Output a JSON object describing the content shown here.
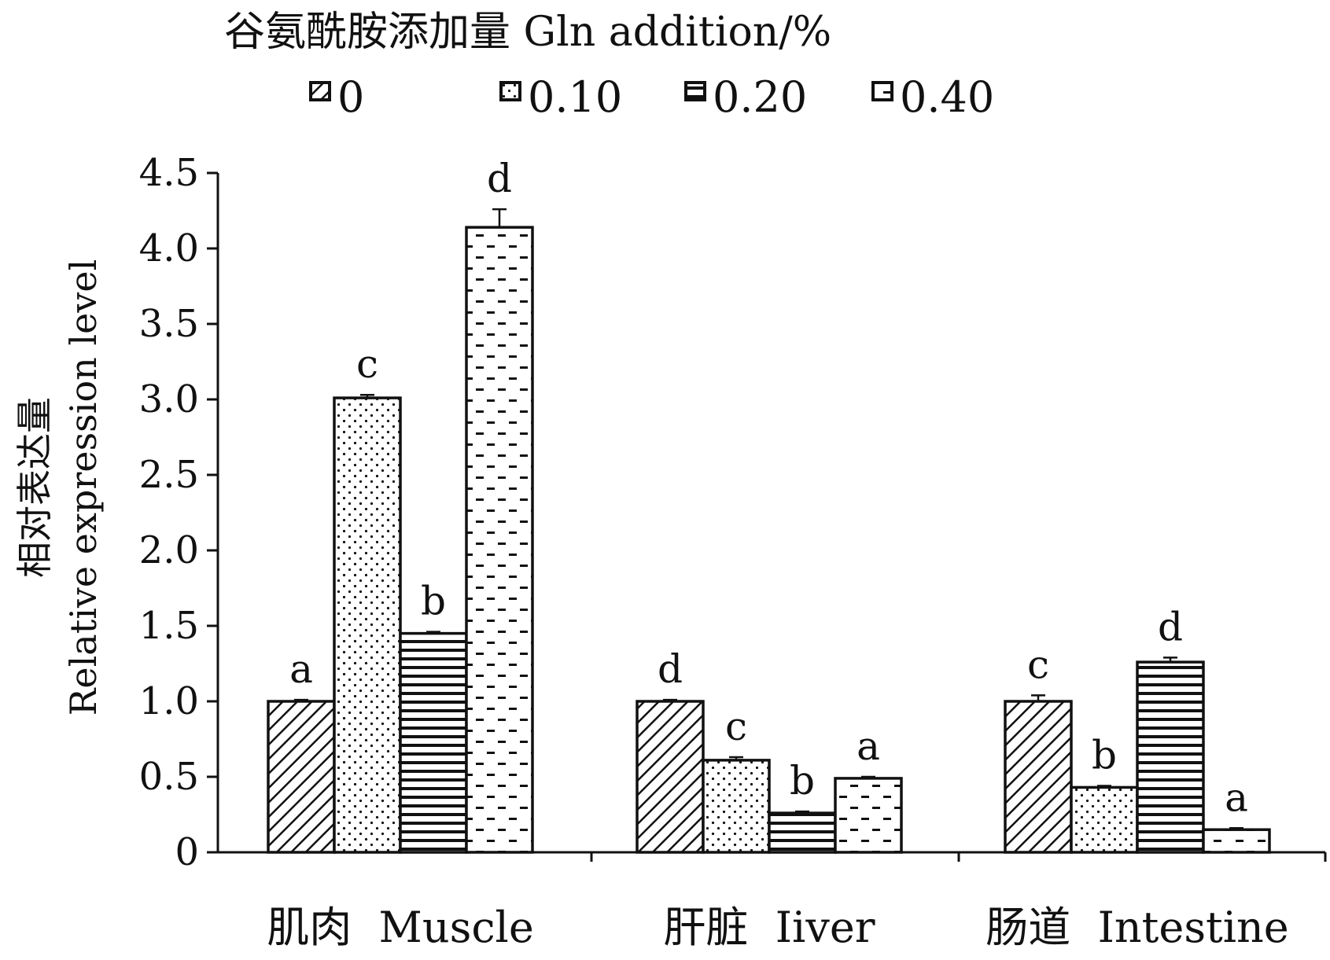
{
  "legend": {
    "title": "谷氨酰胺添加量 Gln addition/%"
  },
  "chart_data": {
    "type": "bar",
    "ylabel": [
      "相对表达量",
      "Relative expression level"
    ],
    "ylim": [
      0,
      4.5
    ],
    "yticks": [
      "0",
      "0.5",
      "1.0",
      "1.5",
      "2.0",
      "2.5",
      "3.0",
      "3.5",
      "4.0",
      "4.5"
    ],
    "categories": [
      "肌肉  Muscle",
      "肝脏  Iiver",
      "肠道  Intestine"
    ],
    "legend_position": "top-center",
    "grid": false,
    "series": [
      {
        "name": "0",
        "pattern": "diagonal",
        "values": [
          1.0,
          1.0,
          1.0
        ],
        "errors": [
          0.01,
          0.01,
          0.04
        ],
        "letters": [
          "a",
          "d",
          "c"
        ]
      },
      {
        "name": "0.10",
        "pattern": "dots",
        "values": [
          3.01,
          0.61,
          0.43
        ],
        "errors": [
          0.02,
          0.02,
          0.01
        ],
        "letters": [
          "c",
          "c",
          "b"
        ]
      },
      {
        "name": "0.20",
        "pattern": "hlines",
        "values": [
          1.45,
          0.26,
          1.26
        ],
        "errors": [
          0.01,
          0.01,
          0.03
        ],
        "letters": [
          "b",
          "b",
          "d"
        ]
      },
      {
        "name": "0.40",
        "pattern": "dashes",
        "values": [
          4.14,
          0.49,
          0.15
        ],
        "errors": [
          0.12,
          0.01,
          0.01
        ],
        "letters": [
          "d",
          "a",
          "a"
        ]
      }
    ]
  }
}
